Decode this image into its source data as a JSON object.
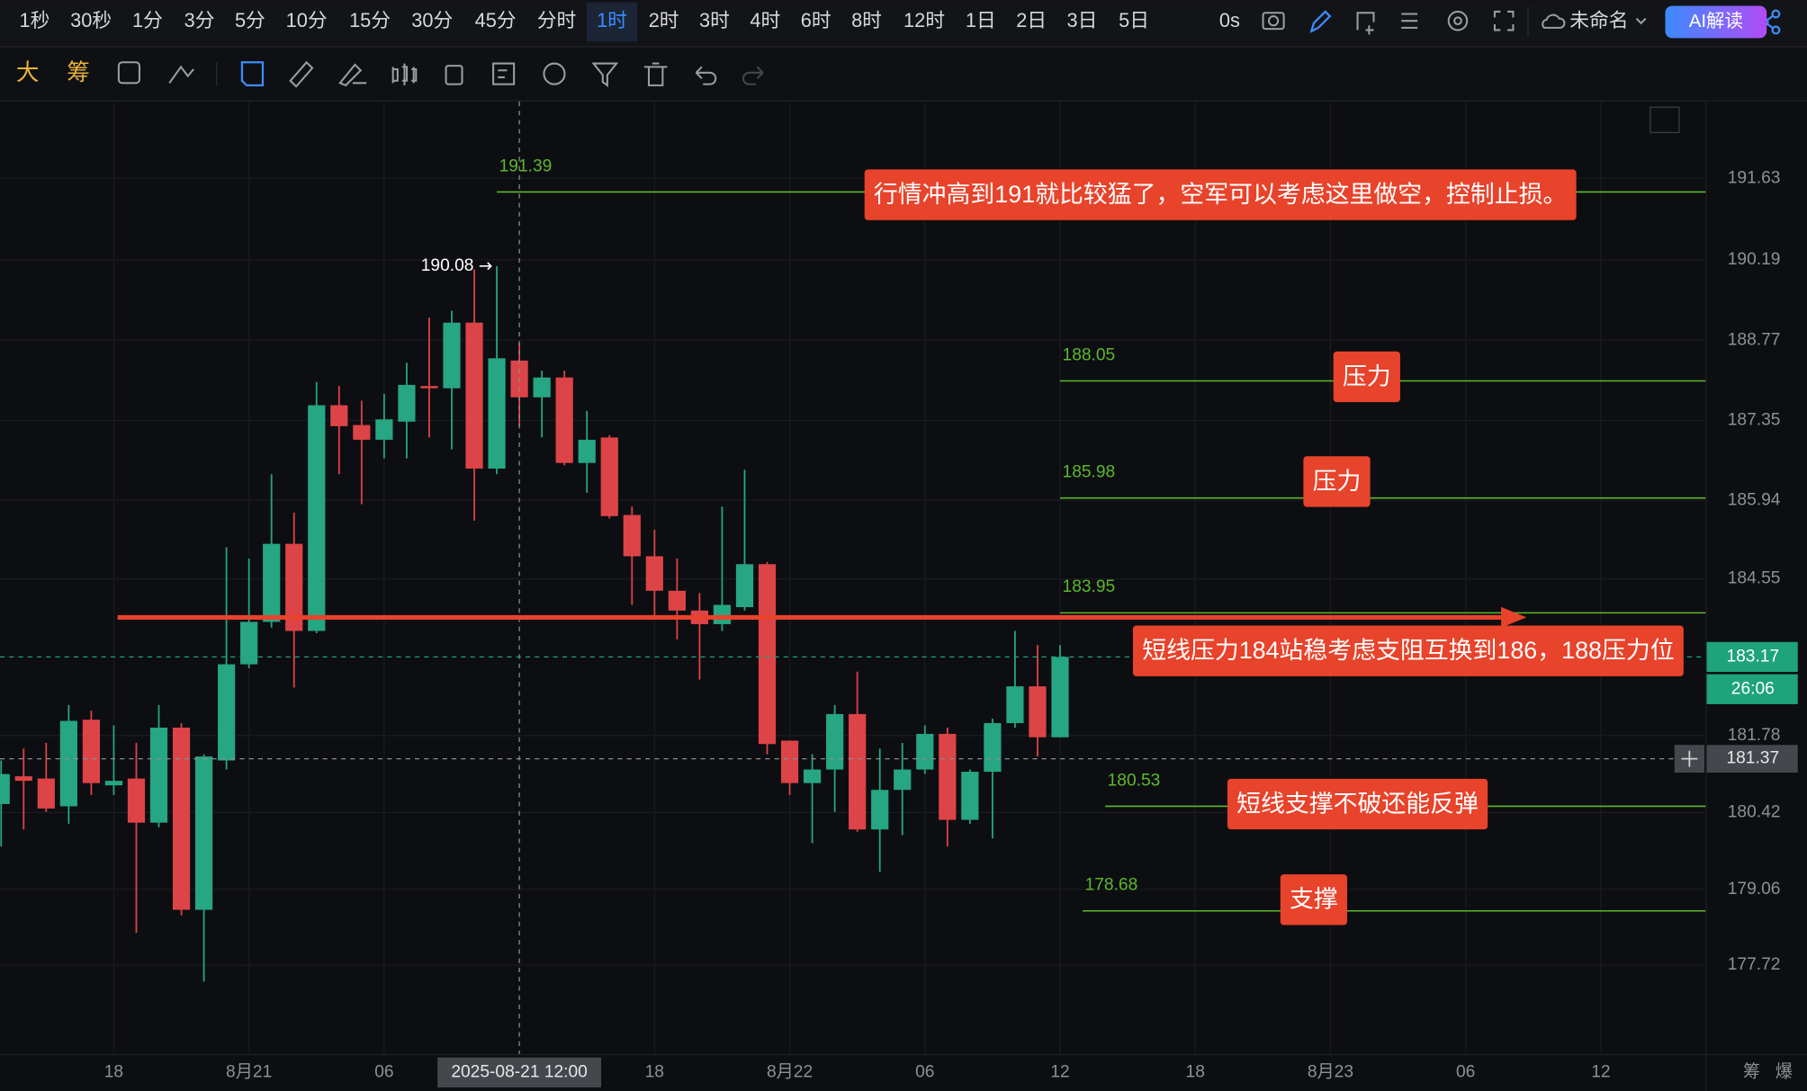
{
  "toolbar": {
    "intervals": [
      "1秒",
      "30秒",
      "1分",
      "3分",
      "5分",
      "10分",
      "15分",
      "30分",
      "45分",
      "分时",
      "1时",
      "2时",
      "3时",
      "4时",
      "6时",
      "8时",
      "12时",
      "1日",
      "2日",
      "3日",
      "5日"
    ],
    "active_interval": 10,
    "timer": "0s",
    "workspace": "未命名",
    "ai_button": "AI解读"
  },
  "tools": {
    "labels": [
      "大",
      "筹"
    ]
  },
  "footer_labels": [
    "筹",
    "爆"
  ],
  "chart_data": {
    "type": "candlestick",
    "x": [
      0,
      1,
      2,
      3,
      4,
      5,
      6,
      7,
      8,
      9,
      10,
      11,
      12,
      13,
      14,
      15,
      16,
      17,
      18,
      19,
      20,
      21,
      22,
      23,
      24,
      25,
      26,
      27,
      28,
      29,
      30,
      31,
      32,
      33,
      34,
      35,
      36,
      37,
      38,
      39,
      40,
      41,
      42,
      43,
      44,
      45,
      46,
      47
    ],
    "open": [
      180.57,
      181.06,
      181.02,
      180.53,
      182.06,
      180.9,
      181.02,
      180.24,
      181.92,
      178.7,
      181.34,
      183.04,
      183.79,
      185.17,
      183.63,
      187.62,
      187.27,
      187.01,
      187.33,
      187.96,
      187.92,
      189.08,
      186.5,
      188.41,
      187.76,
      188.11,
      186.6,
      187.05,
      185.68,
      184.95,
      184.34,
      183.99,
      183.75,
      184.05,
      184.81,
      181.69,
      180.94,
      181.18,
      182.16,
      180.12,
      180.82,
      181.18,
      181.81,
      180.29,
      181.14,
      182.0,
      182.65,
      181.75
    ],
    "high": [
      181.34,
      181.55,
      181.65,
      182.32,
      182.22,
      181.96,
      181.65,
      182.32,
      182.0,
      181.45,
      185.11,
      184.91,
      186.4,
      185.72,
      188.03,
      187.96,
      187.7,
      187.82,
      188.37,
      189.17,
      189.29,
      190.02,
      190.08,
      188.72,
      188.23,
      188.23,
      187.52,
      187.09,
      185.83,
      185.42,
      184.91,
      184.3,
      185.83,
      186.48,
      184.85,
      181.69,
      181.45,
      182.32,
      182.91,
      181.55,
      181.65,
      181.96,
      181.92,
      181.18,
      182.08,
      183.63,
      183.38,
      183.38
    ],
    "low": [
      179.82,
      180.12,
      180.43,
      180.22,
      180.73,
      180.73,
      178.29,
      180.16,
      178.6,
      177.43,
      181.18,
      182.97,
      183.69,
      182.63,
      183.59,
      186.4,
      185.87,
      186.68,
      186.68,
      187.05,
      186.84,
      185.58,
      186.4,
      187.25,
      187.05,
      186.56,
      186.07,
      185.62,
      184.09,
      183.89,
      183.48,
      182.77,
      183.63,
      183.99,
      181.45,
      180.73,
      179.88,
      180.43,
      180.08,
      179.37,
      180.02,
      181.1,
      179.82,
      180.22,
      179.96,
      181.92,
      181.41,
      181.75
    ],
    "close": [
      181.1,
      180.98,
      180.49,
      182.04,
      180.94,
      180.98,
      180.24,
      181.92,
      178.7,
      181.41,
      183.04,
      183.79,
      185.17,
      183.63,
      187.62,
      187.25,
      187.01,
      187.37,
      187.98,
      187.92,
      189.08,
      186.5,
      188.45,
      187.76,
      188.11,
      186.6,
      187.01,
      185.66,
      184.95,
      184.34,
      183.99,
      183.75,
      184.09,
      184.81,
      181.63,
      180.94,
      181.18,
      182.16,
      180.12,
      180.82,
      181.18,
      181.81,
      180.29,
      181.14,
      182.0,
      182.65,
      181.75,
      183.17
    ],
    "up_color": "#26a682",
    "down_color": "#dd4448",
    "xlim": [
      -0.05,
      75.65
    ],
    "ylim": [
      176.15,
      192.99
    ],
    "xticks": [
      {
        "value": 5,
        "label": "18"
      },
      {
        "value": 11,
        "label": "8月21"
      },
      {
        "value": 17,
        "label": "06"
      },
      {
        "value": 29,
        "label": "18"
      },
      {
        "value": 35,
        "label": "8月22"
      },
      {
        "value": 41,
        "label": "06"
      },
      {
        "value": 47,
        "label": "12"
      },
      {
        "value": 53,
        "label": "18"
      },
      {
        "value": 59,
        "label": "8月23"
      },
      {
        "value": 65,
        "label": "06"
      },
      {
        "value": 71,
        "label": "12"
      }
    ],
    "yticks": [
      191.63,
      190.19,
      188.77,
      187.35,
      185.94,
      184.55,
      181.78,
      180.42,
      179.06,
      177.72
    ],
    "grid": true,
    "levels": [
      {
        "value": 191.39,
        "from": 22,
        "note": "行情冲高到191就比较猛了，空军可以考虑这里做空，控制止损。"
      },
      {
        "value": 188.05,
        "from": 47,
        "note": "压力"
      },
      {
        "value": 185.98,
        "from": 47,
        "note": "压力"
      },
      {
        "value": 183.95,
        "from": 47,
        "note": "短线压力184站稳考虑支阻互换到186，188压力位"
      },
      {
        "value": 180.53,
        "from": 49,
        "note": "短线支撑不破还能反弹"
      },
      {
        "value": 178.68,
        "from": 48,
        "note": "支撑"
      }
    ],
    "level_color": "#5cb82e",
    "note_color": "#e8432b",
    "arrow": {
      "x": [
        5.17,
        67.7
      ],
      "y": 183.87
    },
    "last_price": 183.17,
    "last_color": "#1ea37b",
    "countdown": "26:06",
    "crosshair": {
      "x": {
        "value": 23,
        "label": "2025-08-21 12:00"
      },
      "y": 181.37
    }
  }
}
